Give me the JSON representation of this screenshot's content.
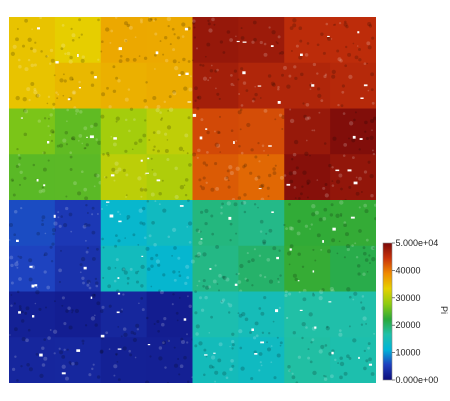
{
  "viewer": {
    "title": "",
    "field_name": "Pi"
  },
  "scalar_bar": {
    "title": "Pi",
    "range": [
      0,
      50000
    ],
    "tick_labels": [
      "5.000e+04",
      "40000",
      "30000",
      "20000",
      "10000",
      "0.000e+00"
    ],
    "tick_values": [
      50000,
      40000,
      30000,
      20000,
      10000,
      0
    ],
    "colormap": "jet-like",
    "colors": [
      "#0d0d7a",
      "#1f3fbf",
      "#00b4d8",
      "#21c0a8",
      "#2aa83a",
      "#8fcc10",
      "#e6d000",
      "#f08a00",
      "#c8320a",
      "#7a0a0a"
    ]
  },
  "mosaic": {
    "rows": 4,
    "cols": 4,
    "cell_values": [
      [
        34000,
        37000,
        47000,
        45000
      ],
      [
        26000,
        30000,
        42000,
        49000
      ],
      [
        5000,
        13000,
        19000,
        22000
      ],
      [
        3000,
        2000,
        15000,
        16000
      ]
    ]
  }
}
